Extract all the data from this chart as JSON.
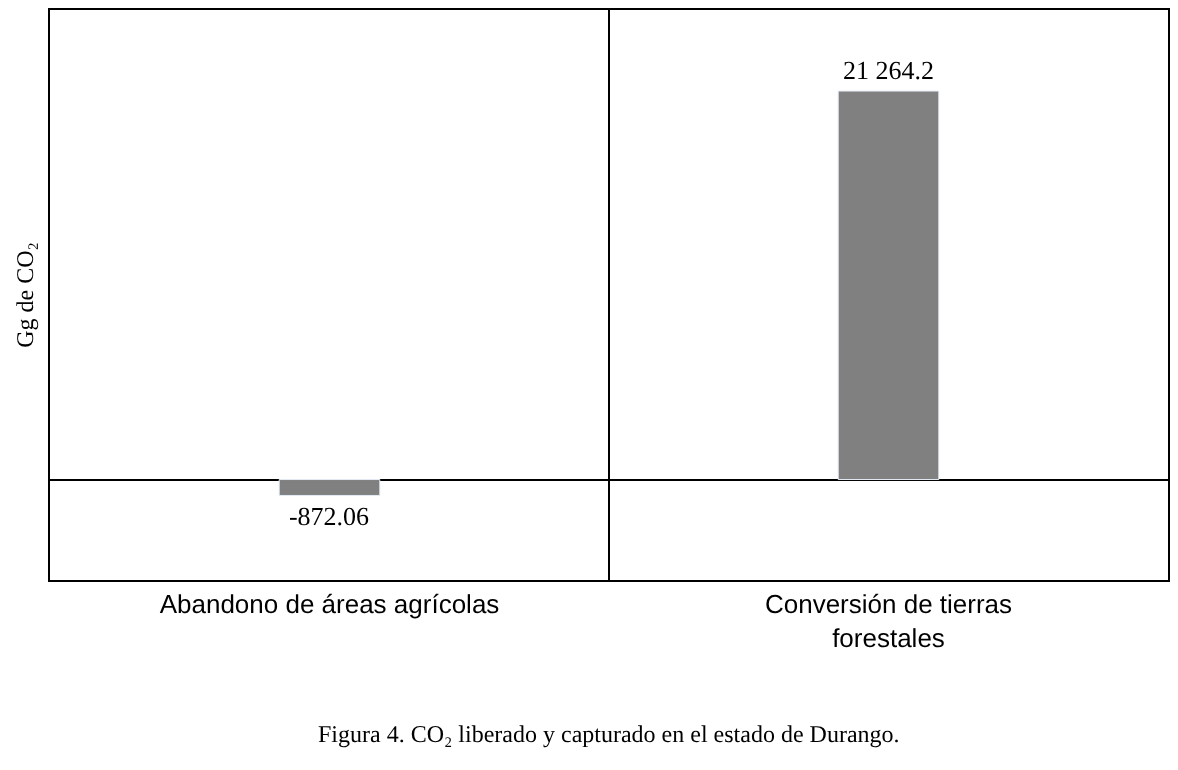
{
  "chart_data": {
    "type": "bar",
    "ylabel": "Gg de CO₂",
    "categories": [
      "Abandono de áreas agrícolas",
      "Conversión de tierras forestales"
    ],
    "values": [
      -872.06,
      21264.2
    ],
    "color": "#808080",
    "ylim": [
      -5500,
      25700
    ],
    "data_labels": true,
    "value_labels": [
      "-872.06",
      "21 264.2"
    ],
    "legend": false,
    "tick_labels": "x",
    "annotations": [
      "Figura 4. CO₂ liberado y capturado en el estado de Durango."
    ]
  }
}
